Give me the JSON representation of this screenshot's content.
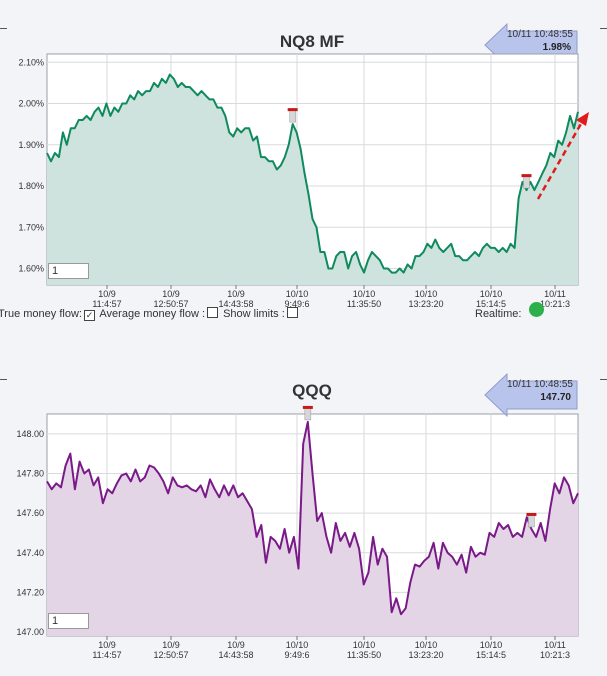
{
  "charts": [
    {
      "title": "NQ8 MF",
      "badge": {
        "timestamp": "10/11 10:48:55",
        "value": "1.98%"
      },
      "input_value": "1",
      "fill": "#cfe3de",
      "line": "#0f8a5c"
    },
    {
      "title": "QQQ",
      "badge": {
        "timestamp": "10/11 10:48:55",
        "value": "147.70"
      },
      "input_value": "1",
      "fill": "#e3d4e6",
      "line": "#7a1a88"
    }
  ],
  "controls": {
    "true_money_flow": "True money flow:",
    "average_money_flow": "Average money flow :",
    "show_limits": "Show limits :",
    "realtime": "Realtime:",
    "true_money_flow_checked": true
  },
  "chart_data": [
    {
      "type": "area",
      "title": "NQ8 MF",
      "ylim": [
        1.56,
        2.12
      ],
      "yticks": [
        "1.60%",
        "1.70%",
        "1.80%",
        "1.90%",
        "2.00%",
        "2.10%"
      ],
      "ytick_values": [
        1.6,
        1.7,
        1.8,
        1.9,
        2.0,
        2.1
      ],
      "xticks": [
        {
          "date": "10/9",
          "time": "11:4:57"
        },
        {
          "date": "10/9",
          "time": "12:50:57"
        },
        {
          "date": "10/9",
          "time": "14:43:58"
        },
        {
          "date": "10/10",
          "time": "9:49:6"
        },
        {
          "date": "10/10",
          "time": "11:35:50"
        },
        {
          "date": "10/10",
          "time": "13:23:20"
        },
        {
          "date": "10/10",
          "time": "15:14:5"
        },
        {
          "date": "10/11",
          "time": "10:21:3"
        }
      ],
      "values": [
        1.88,
        1.86,
        1.88,
        1.87,
        1.93,
        1.9,
        1.94,
        1.94,
        1.96,
        1.96,
        1.97,
        1.96,
        1.98,
        1.99,
        1.97,
        2.0,
        1.97,
        1.99,
        1.98,
        2.0,
        2.0,
        2.02,
        2.01,
        2.03,
        2.02,
        2.03,
        2.03,
        2.05,
        2.04,
        2.06,
        2.05,
        2.07,
        2.06,
        2.04,
        2.05,
        2.04,
        2.04,
        2.03,
        2.02,
        2.03,
        2.02,
        2.01,
        2.01,
        1.99,
        1.99,
        1.97,
        1.93,
        1.92,
        1.94,
        1.93,
        1.94,
        1.94,
        1.91,
        1.92,
        1.87,
        1.87,
        1.86,
        1.86,
        1.84,
        1.85,
        1.87,
        1.9,
        1.95,
        1.93,
        1.89,
        1.83,
        1.78,
        1.72,
        1.7,
        1.64,
        1.64,
        1.6,
        1.6,
        1.63,
        1.64,
        1.64,
        1.6,
        1.63,
        1.64,
        1.61,
        1.59,
        1.62,
        1.64,
        1.63,
        1.62,
        1.6,
        1.6,
        1.59,
        1.59,
        1.6,
        1.59,
        1.61,
        1.6,
        1.63,
        1.63,
        1.64,
        1.66,
        1.65,
        1.67,
        1.65,
        1.64,
        1.65,
        1.66,
        1.63,
        1.63,
        1.62,
        1.62,
        1.63,
        1.64,
        1.63,
        1.65,
        1.66,
        1.65,
        1.65,
        1.64,
        1.65,
        1.64,
        1.66,
        1.65,
        1.77,
        1.81,
        1.79,
        1.81,
        1.79,
        1.81,
        1.83,
        1.85,
        1.88,
        1.87,
        1.91,
        1.9,
        1.93,
        1.97,
        1.94,
        1.98
      ],
      "marker_indices": [
        62,
        121
      ],
      "arrow": "red-dashed-up"
    },
    {
      "type": "area",
      "title": "QQQ",
      "ylim": [
        146.98,
        148.1
      ],
      "yticks": [
        "147.00",
        "147.20",
        "147.40",
        "147.60",
        "147.80",
        "148.00"
      ],
      "ytick_values": [
        147.0,
        147.2,
        147.4,
        147.6,
        147.8,
        148.0
      ],
      "xticks": [
        {
          "date": "10/9",
          "time": "11:4:57"
        },
        {
          "date": "10/9",
          "time": "12:50:57"
        },
        {
          "date": "10/9",
          "time": "14:43:58"
        },
        {
          "date": "10/10",
          "time": "9:49:6"
        },
        {
          "date": "10/10",
          "time": "11:35:50"
        },
        {
          "date": "10/10",
          "time": "13:23:20"
        },
        {
          "date": "10/10",
          "time": "15:14:5"
        },
        {
          "date": "10/11",
          "time": "10:21:3"
        }
      ],
      "values": [
        147.76,
        147.72,
        147.75,
        147.73,
        147.84,
        147.9,
        147.72,
        147.86,
        147.8,
        147.82,
        147.74,
        147.78,
        147.65,
        147.72,
        147.7,
        147.75,
        147.79,
        147.8,
        147.76,
        147.82,
        147.76,
        147.78,
        147.84,
        147.83,
        147.8,
        147.76,
        147.7,
        147.78,
        147.74,
        147.73,
        147.74,
        147.72,
        147.71,
        147.74,
        147.68,
        147.77,
        147.72,
        147.68,
        147.74,
        147.69,
        147.74,
        147.68,
        147.7,
        147.66,
        147.62,
        147.48,
        147.54,
        147.35,
        147.48,
        147.46,
        147.42,
        147.52,
        147.4,
        147.48,
        147.32,
        147.95,
        148.06,
        147.8,
        147.56,
        147.6,
        147.48,
        147.4,
        147.55,
        147.46,
        147.5,
        147.43,
        147.5,
        147.42,
        147.24,
        147.3,
        147.48,
        147.34,
        147.42,
        147.38,
        147.1,
        147.17,
        147.09,
        147.12,
        147.25,
        147.34,
        147.33,
        147.36,
        147.38,
        147.45,
        147.32,
        147.45,
        147.4,
        147.38,
        147.34,
        147.39,
        147.3,
        147.43,
        147.38,
        147.4,
        147.39,
        147.5,
        147.48,
        147.55,
        147.52,
        147.54,
        147.48,
        147.5,
        147.48,
        147.58,
        147.52,
        147.48,
        147.55,
        147.46,
        147.62,
        147.75,
        147.7,
        147.78,
        147.74,
        147.65,
        147.7
      ],
      "marker_indices": [
        56,
        104
      ]
    }
  ]
}
